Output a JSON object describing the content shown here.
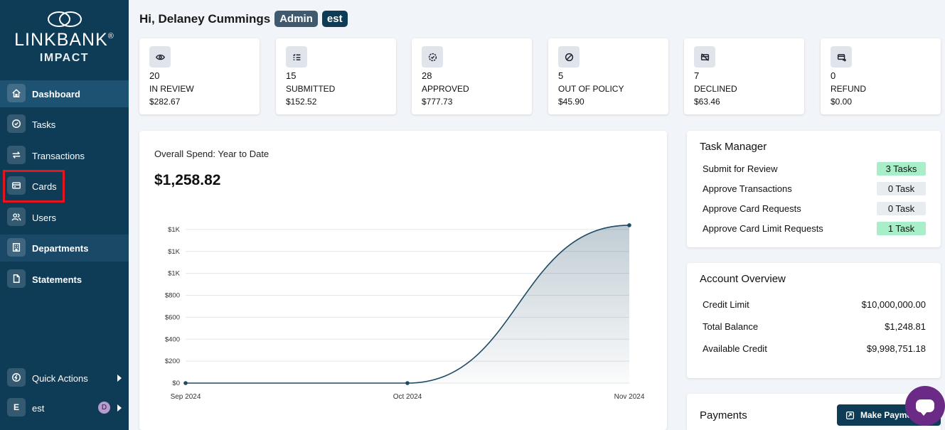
{
  "brand": {
    "name": "LINKBANK",
    "reg": "®",
    "sub": "IMPACT"
  },
  "sidebar": {
    "items": [
      {
        "label": "Dashboard",
        "icon": "home-icon"
      },
      {
        "label": "Tasks",
        "icon": "check-circle-icon"
      },
      {
        "label": "Transactions",
        "icon": "transfer-arrows-icon"
      },
      {
        "label": "Cards",
        "icon": "credit-card-icon"
      },
      {
        "label": "Users",
        "icon": "users-icon"
      },
      {
        "label": "Departments",
        "icon": "building-icon"
      },
      {
        "label": "Statements",
        "icon": "document-icon"
      }
    ],
    "quick_actions": "Quick Actions",
    "user": {
      "initial": "E",
      "name": "est",
      "avatar": "D"
    }
  },
  "header": {
    "greeting": "Hi, Delaney Cummings",
    "role_badge": "Admin",
    "org_badge": "est"
  },
  "stats": [
    {
      "count": "20",
      "label": "IN REVIEW",
      "amount": "$282.67",
      "icon": "eye-icon"
    },
    {
      "count": "15",
      "label": "SUBMITTED",
      "amount": "$152.52",
      "icon": "list-check-icon"
    },
    {
      "count": "28",
      "label": "APPROVED",
      "amount": "$777.73",
      "icon": "check-badge-icon"
    },
    {
      "count": "5",
      "label": "OUT OF POLICY",
      "amount": "$45.90",
      "icon": "ban-icon"
    },
    {
      "count": "7",
      "label": "DECLINED",
      "amount": "$63.46",
      "icon": "card-off-icon"
    },
    {
      "count": "0",
      "label": "REFUND",
      "amount": "$0.00",
      "icon": "card-refund-icon"
    }
  ],
  "spend": {
    "title": "Overall Spend: Year to Date",
    "total": "$1,258.82"
  },
  "chart_data": {
    "type": "area",
    "categories": [
      "Sep 2024",
      "Oct 2024",
      "Nov 2024"
    ],
    "values": [
      0,
      0,
      1258.82
    ],
    "yticks": [
      "$0",
      "$200",
      "$400",
      "$600",
      "$800",
      "$1K",
      "$1K",
      "$1K"
    ],
    "ylim": [
      0,
      1400
    ],
    "grid": true,
    "color": "#1f4a63"
  },
  "task_manager": {
    "title": "Task Manager",
    "rows": [
      {
        "label": "Submit for Review",
        "value": "3 Tasks",
        "highlight": true
      },
      {
        "label": "Approve Transactions",
        "value": "0 Task",
        "highlight": false
      },
      {
        "label": "Approve Card Requests",
        "value": "0 Task",
        "highlight": false
      },
      {
        "label": "Approve Card Limit Requests",
        "value": "1 Task",
        "highlight": true
      }
    ]
  },
  "account_overview": {
    "title": "Account Overview",
    "rows": [
      {
        "label": "Credit Limit",
        "value": "$10,000,000.00"
      },
      {
        "label": "Total Balance",
        "value": "$1,248.81"
      },
      {
        "label": "Available Credit",
        "value": "$9,998,751.18"
      }
    ]
  },
  "payments": {
    "title": "Payments",
    "button": "Make Payment"
  },
  "colors": {
    "sidebar": "#0e3b56",
    "accent_green": "#a8eec9",
    "highlight_red": "#e2161c",
    "chat": "#6a2a86"
  }
}
